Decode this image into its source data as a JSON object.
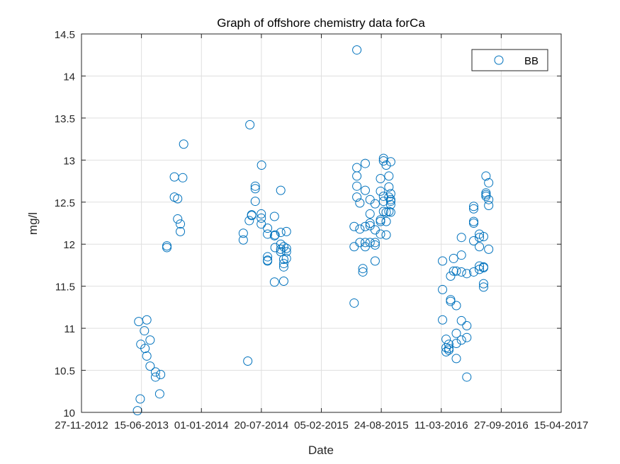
{
  "colors": {
    "series": "#0072BD",
    "axis": "#262626",
    "grid": "#dfdfdf",
    "background": "#ffffff"
  },
  "chart_data": {
    "type": "scatter",
    "title": "Graph of offshore chemistry data forCa",
    "xlabel": "Date",
    "ylabel": "mg/l",
    "ylim": [
      10,
      14.5
    ],
    "xlim": [
      "2012-11-27",
      "2017-04-16"
    ],
    "grid": true,
    "legend_position": "top-right",
    "x_tick_labels": [
      "27-11-2012",
      "15-06-2013",
      "01-01-2014",
      "20-07-2014",
      "05-02-2015",
      "24-08-2015",
      "11-03-2016",
      "27-09-2016",
      "15-04-2017"
    ],
    "y_tick_labels": [
      "10",
      "10.5",
      "11",
      "11.5",
      "12",
      "12.5",
      "13",
      "13.5",
      "14",
      "14.5"
    ],
    "series": [
      {
        "name": "BB",
        "marker": "circle",
        "points": [
          [
            "2013-06-02",
            10.02
          ],
          [
            "2013-06-06",
            11.08
          ],
          [
            "2013-06-11",
            10.16
          ],
          [
            "2013-06-13",
            10.81
          ],
          [
            "2013-06-25",
            10.97
          ],
          [
            "2013-06-27",
            10.76
          ],
          [
            "2013-07-03",
            10.67
          ],
          [
            "2013-07-03",
            11.1
          ],
          [
            "2013-07-14",
            10.55
          ],
          [
            "2013-07-14",
            10.86
          ],
          [
            "2013-08-01",
            10.48
          ],
          [
            "2013-08-01",
            10.42
          ],
          [
            "2013-08-15",
            10.22
          ],
          [
            "2013-08-18",
            10.45
          ],
          [
            "2013-09-08",
            11.98
          ],
          [
            "2013-09-08",
            11.96
          ],
          [
            "2013-10-03",
            12.8
          ],
          [
            "2013-10-03",
            12.56
          ],
          [
            "2013-10-14",
            12.3
          ],
          [
            "2013-10-14",
            12.54
          ],
          [
            "2013-10-23",
            12.24
          ],
          [
            "2013-10-23",
            12.15
          ],
          [
            "2013-10-31",
            12.79
          ],
          [
            "2013-11-03",
            13.19
          ],
          [
            "2014-05-21",
            12.13
          ],
          [
            "2014-05-21",
            12.05
          ],
          [
            "2014-06-05",
            10.61
          ],
          [
            "2014-06-10",
            12.28
          ],
          [
            "2014-06-12",
            13.42
          ],
          [
            "2014-06-18",
            12.35
          ],
          [
            "2014-06-18",
            12.34
          ],
          [
            "2014-06-30",
            12.51
          ],
          [
            "2014-06-30",
            12.69
          ],
          [
            "2014-06-30",
            12.66
          ],
          [
            "2014-07-20",
            12.36
          ],
          [
            "2014-07-20",
            12.31
          ],
          [
            "2014-07-20",
            12.24
          ],
          [
            "2014-07-21",
            12.94
          ],
          [
            "2014-08-10",
            11.85
          ],
          [
            "2014-08-10",
            11.81
          ],
          [
            "2014-08-10",
            11.8
          ],
          [
            "2014-08-10",
            12.12
          ],
          [
            "2014-08-10",
            12.19
          ],
          [
            "2014-09-02",
            11.55
          ],
          [
            "2014-09-02",
            12.33
          ],
          [
            "2014-09-02",
            12.1
          ],
          [
            "2014-09-04",
            12.11
          ],
          [
            "2014-09-04",
            11.96
          ],
          [
            "2014-09-23",
            12.0
          ],
          [
            "2014-09-23",
            11.94
          ],
          [
            "2014-09-23",
            11.91
          ],
          [
            "2014-09-23",
            12.14
          ],
          [
            "2014-09-23",
            12.64
          ],
          [
            "2014-10-03",
            11.56
          ],
          [
            "2014-10-03",
            11.73
          ],
          [
            "2014-10-03",
            11.77
          ],
          [
            "2014-10-03",
            11.82
          ],
          [
            "2014-10-03",
            11.97
          ],
          [
            "2014-10-12",
            11.83
          ],
          [
            "2014-10-12",
            11.91
          ],
          [
            "2014-10-12",
            11.95
          ],
          [
            "2014-10-12",
            12.15
          ],
          [
            "2015-05-26",
            11.3
          ],
          [
            "2015-05-26",
            11.97
          ],
          [
            "2015-05-26",
            12.21
          ],
          [
            "2015-06-04",
            12.91
          ],
          [
            "2015-06-04",
            12.81
          ],
          [
            "2015-06-04",
            12.69
          ],
          [
            "2015-06-04",
            12.56
          ],
          [
            "2015-06-04",
            14.31
          ],
          [
            "2015-06-14",
            12.02
          ],
          [
            "2015-06-14",
            12.18
          ],
          [
            "2015-06-14",
            12.49
          ],
          [
            "2015-06-24",
            11.71
          ],
          [
            "2015-06-24",
            11.67
          ],
          [
            "2015-07-02",
            11.97
          ],
          [
            "2015-07-02",
            12.02
          ],
          [
            "2015-07-02",
            12.21
          ],
          [
            "2015-07-02",
            12.64
          ],
          [
            "2015-07-02",
            12.96
          ],
          [
            "2015-07-18",
            12.02
          ],
          [
            "2015-07-18",
            12.22
          ],
          [
            "2015-07-18",
            12.25
          ],
          [
            "2015-07-18",
            12.36
          ],
          [
            "2015-07-18",
            12.53
          ],
          [
            "2015-08-04",
            11.8
          ],
          [
            "2015-08-04",
            11.99
          ],
          [
            "2015-08-04",
            12.02
          ],
          [
            "2015-08-04",
            12.17
          ],
          [
            "2015-08-04",
            12.48
          ],
          [
            "2015-08-22",
            12.12
          ],
          [
            "2015-08-22",
            12.27
          ],
          [
            "2015-08-22",
            12.29
          ],
          [
            "2015-08-22",
            12.63
          ],
          [
            "2015-08-22",
            12.78
          ],
          [
            "2015-09-01",
            13.02
          ],
          [
            "2015-09-01",
            12.99
          ],
          [
            "2015-09-01",
            12.57
          ],
          [
            "2015-09-01",
            12.39
          ],
          [
            "2015-09-01",
            12.51
          ],
          [
            "2015-09-10",
            12.38
          ],
          [
            "2015-09-10",
            12.11
          ],
          [
            "2015-09-10",
            12.27
          ],
          [
            "2015-09-10",
            12.94
          ],
          [
            "2015-09-19",
            12.39
          ],
          [
            "2015-09-19",
            12.56
          ],
          [
            "2015-09-19",
            12.81
          ],
          [
            "2015-09-19",
            12.68
          ],
          [
            "2015-09-25",
            12.47
          ],
          [
            "2015-09-25",
            12.51
          ],
          [
            "2015-09-25",
            12.6
          ],
          [
            "2015-09-25",
            12.53
          ],
          [
            "2015-09-25",
            12.38
          ],
          [
            "2015-09-25",
            12.98
          ],
          [
            "2016-03-16",
            11.8
          ],
          [
            "2016-03-16",
            11.46
          ],
          [
            "2016-03-16",
            11.1
          ],
          [
            "2016-03-28",
            10.87
          ],
          [
            "2016-03-28",
            10.77
          ],
          [
            "2016-03-28",
            10.72
          ],
          [
            "2016-04-06",
            10.76
          ],
          [
            "2016-04-06",
            10.74
          ],
          [
            "2016-04-06",
            10.81
          ],
          [
            "2016-04-12",
            11.62
          ],
          [
            "2016-04-12",
            11.34
          ],
          [
            "2016-04-12",
            11.32
          ],
          [
            "2016-04-22",
            11.83
          ],
          [
            "2016-04-22",
            11.68
          ],
          [
            "2016-05-01",
            11.68
          ],
          [
            "2016-05-01",
            11.27
          ],
          [
            "2016-05-01",
            10.94
          ],
          [
            "2016-05-01",
            10.82
          ],
          [
            "2016-05-01",
            10.64
          ],
          [
            "2016-05-18",
            12.08
          ],
          [
            "2016-05-18",
            11.87
          ],
          [
            "2016-05-18",
            11.67
          ],
          [
            "2016-05-18",
            11.09
          ],
          [
            "2016-05-18",
            10.86
          ],
          [
            "2016-06-05",
            11.65
          ],
          [
            "2016-06-05",
            11.03
          ],
          [
            "2016-06-05",
            10.89
          ],
          [
            "2016-06-05",
            10.42
          ],
          [
            "2016-06-28",
            12.45
          ],
          [
            "2016-06-28",
            12.42
          ],
          [
            "2016-06-28",
            12.27
          ],
          [
            "2016-06-28",
            12.25
          ],
          [
            "2016-06-28",
            12.04
          ],
          [
            "2016-06-28",
            11.67
          ],
          [
            "2016-07-17",
            12.12
          ],
          [
            "2016-07-17",
            12.08
          ],
          [
            "2016-07-17",
            11.97
          ],
          [
            "2016-07-17",
            11.74
          ],
          [
            "2016-07-17",
            11.7
          ],
          [
            "2016-07-31",
            12.09
          ],
          [
            "2016-07-31",
            11.73
          ],
          [
            "2016-07-31",
            11.72
          ],
          [
            "2016-07-31",
            11.53
          ],
          [
            "2016-07-31",
            11.49
          ],
          [
            "2016-08-08",
            12.81
          ],
          [
            "2016-08-08",
            12.61
          ],
          [
            "2016-08-08",
            12.59
          ],
          [
            "2016-08-08",
            12.57
          ],
          [
            "2016-08-17",
            12.73
          ],
          [
            "2016-08-17",
            12.53
          ],
          [
            "2016-08-17",
            12.46
          ],
          [
            "2016-08-17",
            11.94
          ]
        ]
      }
    ]
  }
}
